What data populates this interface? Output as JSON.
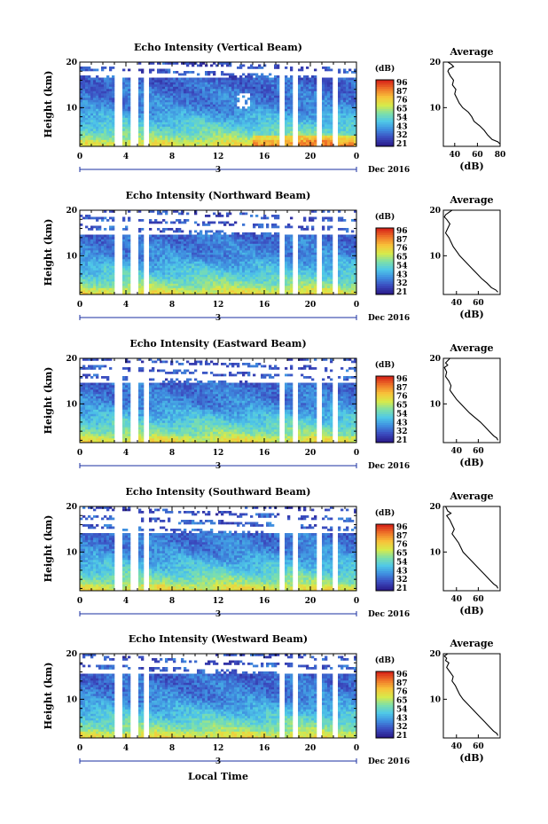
{
  "figure": {
    "date_label": "Dec 2016",
    "day_label": "3",
    "xlabel": "Local Time",
    "ylabel": "Height (km)",
    "colorbar_unit": "(dB)",
    "colorbar_ticks": [
      "96",
      "87",
      "76",
      "65",
      "54",
      "43",
      "32",
      "21"
    ],
    "colorscale": [
      "#2a1b8a",
      "#3b4cc0",
      "#3f8fe0",
      "#4fc8e8",
      "#7fe0a8",
      "#d8ea4a",
      "#f7c43a",
      "#f07a2a",
      "#d92a1a"
    ],
    "avg_title": "Average",
    "avg_xlabel": "(dB)",
    "x_ticks": [
      "0",
      "4",
      "8",
      "12",
      "16",
      "20",
      "0"
    ],
    "y_ticks": [
      "20",
      "10"
    ]
  },
  "chart_data": [
    {
      "type": "heatmap",
      "title": "Echo Intensity (Vertical Beam)",
      "beam": "vertical",
      "xlabel": "Local Time",
      "ylabel": "Height (km)",
      "xlim": [
        0,
        24
      ],
      "ylim": [
        1.5,
        20
      ],
      "zlim": [
        21,
        96
      ],
      "gaps_hours": [
        [
          3.1,
          3.6
        ],
        [
          4.5,
          5.0
        ],
        [
          5.6,
          6.0
        ],
        [
          17.2,
          17.8
        ],
        [
          18.5,
          19.0
        ],
        [
          20.5,
          20.9
        ],
        [
          21.9,
          22.3
        ]
      ],
      "profile_xlim": [
        30,
        80
      ],
      "profile_xticks": [
        "40",
        "60",
        "80"
      ],
      "profile": [
        [
          20,
          34
        ],
        [
          19.5,
          37
        ],
        [
          19,
          39
        ],
        [
          18.5,
          35
        ],
        [
          18,
          34
        ],
        [
          17,
          36
        ],
        [
          16,
          39
        ],
        [
          15,
          38
        ],
        [
          14,
          41
        ],
        [
          13,
          40
        ],
        [
          12,
          42
        ],
        [
          11,
          44
        ],
        [
          10,
          47
        ],
        [
          9,
          52
        ],
        [
          8,
          55
        ],
        [
          7,
          57
        ],
        [
          6,
          62
        ],
        [
          5,
          66
        ],
        [
          4,
          69
        ],
        [
          3,
          73
        ],
        [
          2.5,
          78
        ],
        [
          2,
          80
        ]
      ]
    },
    {
      "type": "heatmap",
      "title": "Echo Intensity (Northward Beam)",
      "beam": "northward",
      "xlabel": "Local Time",
      "ylabel": "Height (km)",
      "xlim": [
        0,
        24
      ],
      "ylim": [
        1.5,
        20
      ],
      "zlim": [
        21,
        96
      ],
      "gaps_hours": [
        [
          3.1,
          3.6
        ],
        [
          4.5,
          5.0
        ],
        [
          5.6,
          6.0
        ],
        [
          17.2,
          17.8
        ],
        [
          18.5,
          19.0
        ],
        [
          20.5,
          20.9
        ],
        [
          21.9,
          22.3
        ]
      ],
      "profile_xlim": [
        28,
        80
      ],
      "profile_xticks": [
        "40",
        "60"
      ],
      "profile": [
        [
          20,
          36
        ],
        [
          19,
          30
        ],
        [
          18.5,
          29
        ],
        [
          18,
          31
        ],
        [
          17,
          34
        ],
        [
          16,
          32
        ],
        [
          15,
          30
        ],
        [
          14,
          33
        ],
        [
          13,
          35
        ],
        [
          12,
          37
        ],
        [
          11,
          40
        ],
        [
          10,
          43
        ],
        [
          9,
          47
        ],
        [
          8,
          51
        ],
        [
          7,
          55
        ],
        [
          6,
          59
        ],
        [
          5,
          63
        ],
        [
          4,
          68
        ],
        [
          3,
          72
        ],
        [
          2.5,
          76
        ],
        [
          2,
          78
        ]
      ]
    },
    {
      "type": "heatmap",
      "title": "Echo Intensity (Eastward Beam)",
      "beam": "eastward",
      "xlabel": "Local Time",
      "ylabel": "Height (km)",
      "xlim": [
        0,
        24
      ],
      "ylim": [
        1.5,
        20
      ],
      "zlim": [
        21,
        96
      ],
      "gaps_hours": [
        [
          3.1,
          3.6
        ],
        [
          4.5,
          5.0
        ],
        [
          5.6,
          6.0
        ],
        [
          17.2,
          17.8
        ],
        [
          18.5,
          19.0
        ],
        [
          20.5,
          20.9
        ],
        [
          21.9,
          22.3
        ]
      ],
      "profile_xlim": [
        28,
        80
      ],
      "profile_xticks": [
        "40",
        "60"
      ],
      "profile": [
        [
          20,
          34
        ],
        [
          19,
          30
        ],
        [
          18.5,
          32
        ],
        [
          18,
          29
        ],
        [
          17,
          31
        ],
        [
          16,
          30
        ],
        [
          15,
          33
        ],
        [
          14,
          35
        ],
        [
          13,
          34
        ],
        [
          12,
          37
        ],
        [
          11,
          40
        ],
        [
          10,
          44
        ],
        [
          9,
          48
        ],
        [
          8,
          52
        ],
        [
          7,
          57
        ],
        [
          6,
          62
        ],
        [
          5,
          66
        ],
        [
          4,
          70
        ],
        [
          3,
          74
        ],
        [
          2.5,
          77
        ],
        [
          2,
          78
        ]
      ]
    },
    {
      "type": "heatmap",
      "title": "Echo Intensity (Southward Beam)",
      "beam": "southward",
      "xlabel": "Local Time",
      "ylabel": "Height (km)",
      "xlim": [
        0,
        24
      ],
      "ylim": [
        1.5,
        20
      ],
      "zlim": [
        21,
        96
      ],
      "gaps_hours": [
        [
          3.1,
          3.6
        ],
        [
          4.5,
          5.0
        ],
        [
          5.6,
          6.0
        ],
        [
          17.2,
          17.8
        ],
        [
          18.5,
          19.0
        ],
        [
          20.5,
          20.9
        ],
        [
          21.9,
          22.3
        ]
      ],
      "profile_xlim": [
        28,
        80
      ],
      "profile_xticks": [
        "40",
        "60"
      ],
      "profile": [
        [
          20,
          30
        ],
        [
          19,
          32
        ],
        [
          18.5,
          35
        ],
        [
          18,
          31
        ],
        [
          17,
          34
        ],
        [
          16,
          36
        ],
        [
          15,
          38
        ],
        [
          14,
          36
        ],
        [
          13,
          39
        ],
        [
          12,
          42
        ],
        [
          11,
          44
        ],
        [
          10,
          46
        ],
        [
          9,
          50
        ],
        [
          8,
          54
        ],
        [
          7,
          58
        ],
        [
          6,
          62
        ],
        [
          5,
          66
        ],
        [
          4,
          70
        ],
        [
          3,
          74
        ],
        [
          2.5,
          77
        ],
        [
          2,
          78
        ]
      ]
    },
    {
      "type": "heatmap",
      "title": "Echo Intensity (Westward Beam)",
      "beam": "westward",
      "xlabel": "Local Time",
      "ylabel": "Height (km)",
      "xlim": [
        0,
        24
      ],
      "ylim": [
        1.5,
        20
      ],
      "zlim": [
        21,
        96
      ],
      "gaps_hours": [
        [
          3.1,
          3.6
        ],
        [
          4.5,
          5.0
        ],
        [
          5.6,
          6.0
        ],
        [
          17.2,
          17.8
        ],
        [
          18.5,
          19.0
        ],
        [
          20.5,
          20.9
        ],
        [
          21.9,
          22.3
        ]
      ],
      "profile_xlim": [
        28,
        80
      ],
      "profile_xticks": [
        "40",
        "60"
      ],
      "profile": [
        [
          20,
          32
        ],
        [
          19.5,
          29
        ],
        [
          19,
          31
        ],
        [
          18.5,
          30
        ],
        [
          18,
          33
        ],
        [
          17,
          31
        ],
        [
          16,
          34
        ],
        [
          15,
          37
        ],
        [
          14,
          36
        ],
        [
          13,
          39
        ],
        [
          12,
          41
        ],
        [
          11,
          43
        ],
        [
          10,
          46
        ],
        [
          9,
          50
        ],
        [
          8,
          54
        ],
        [
          7,
          58
        ],
        [
          6,
          62
        ],
        [
          5,
          66
        ],
        [
          4,
          70
        ],
        [
          3,
          74
        ],
        [
          2.5,
          77
        ],
        [
          2,
          78
        ]
      ]
    }
  ]
}
